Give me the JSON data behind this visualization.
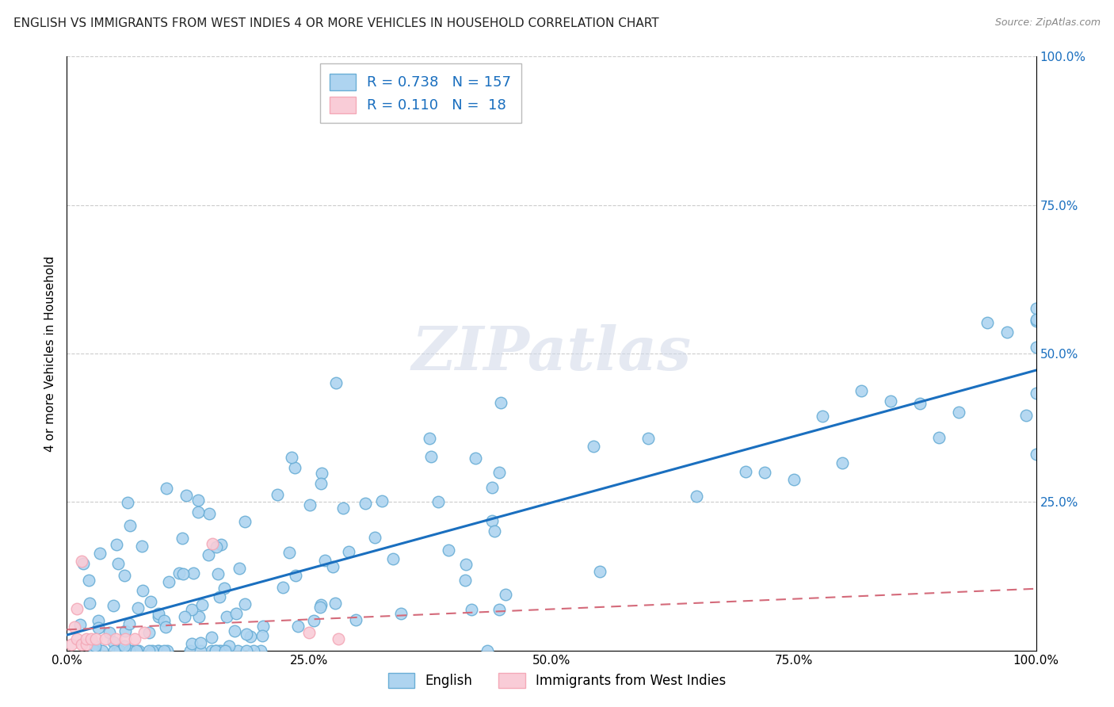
{
  "title": "ENGLISH VS IMMIGRANTS FROM WEST INDIES 4 OR MORE VEHICLES IN HOUSEHOLD CORRELATION CHART",
  "source": "Source: ZipAtlas.com",
  "ylabel": "4 or more Vehicles in Household",
  "xlim": [
    0.0,
    1.0
  ],
  "ylim": [
    0.0,
    1.0
  ],
  "xtick_vals": [
    0.0,
    0.25,
    0.5,
    0.75,
    1.0
  ],
  "xtick_labels": [
    "0.0%",
    "25.0%",
    "50.0%",
    "75.0%",
    "100.0%"
  ],
  "ytick_vals": [
    0.0,
    0.25,
    0.5,
    0.75,
    1.0
  ],
  "ytick_labels_left": [
    "",
    "",
    "",
    "",
    ""
  ],
  "ytick_labels_right": [
    "",
    "25.0%",
    "50.0%",
    "75.0%",
    "100.0%"
  ],
  "english_R": 0.738,
  "english_N": 157,
  "west_indies_R": 0.11,
  "west_indies_N": 18,
  "english_marker_face": "#aed4f0",
  "english_marker_edge": "#6aaed6",
  "west_indies_marker_face": "#f9ccd7",
  "west_indies_marker_edge": "#f4a9b8",
  "line_english_color": "#1a6fbf",
  "line_west_indies_color": "#d46a7a",
  "watermark": "ZIPatlas",
  "background_color": "#ffffff",
  "grid_color": "#cccccc",
  "legend_label_english": "English",
  "legend_label_west_indies": "Immigrants from West Indies",
  "title_fontsize": 11,
  "source_fontsize": 9,
  "axis_fontsize": 11,
  "right_tick_color": "#1a6fbf"
}
